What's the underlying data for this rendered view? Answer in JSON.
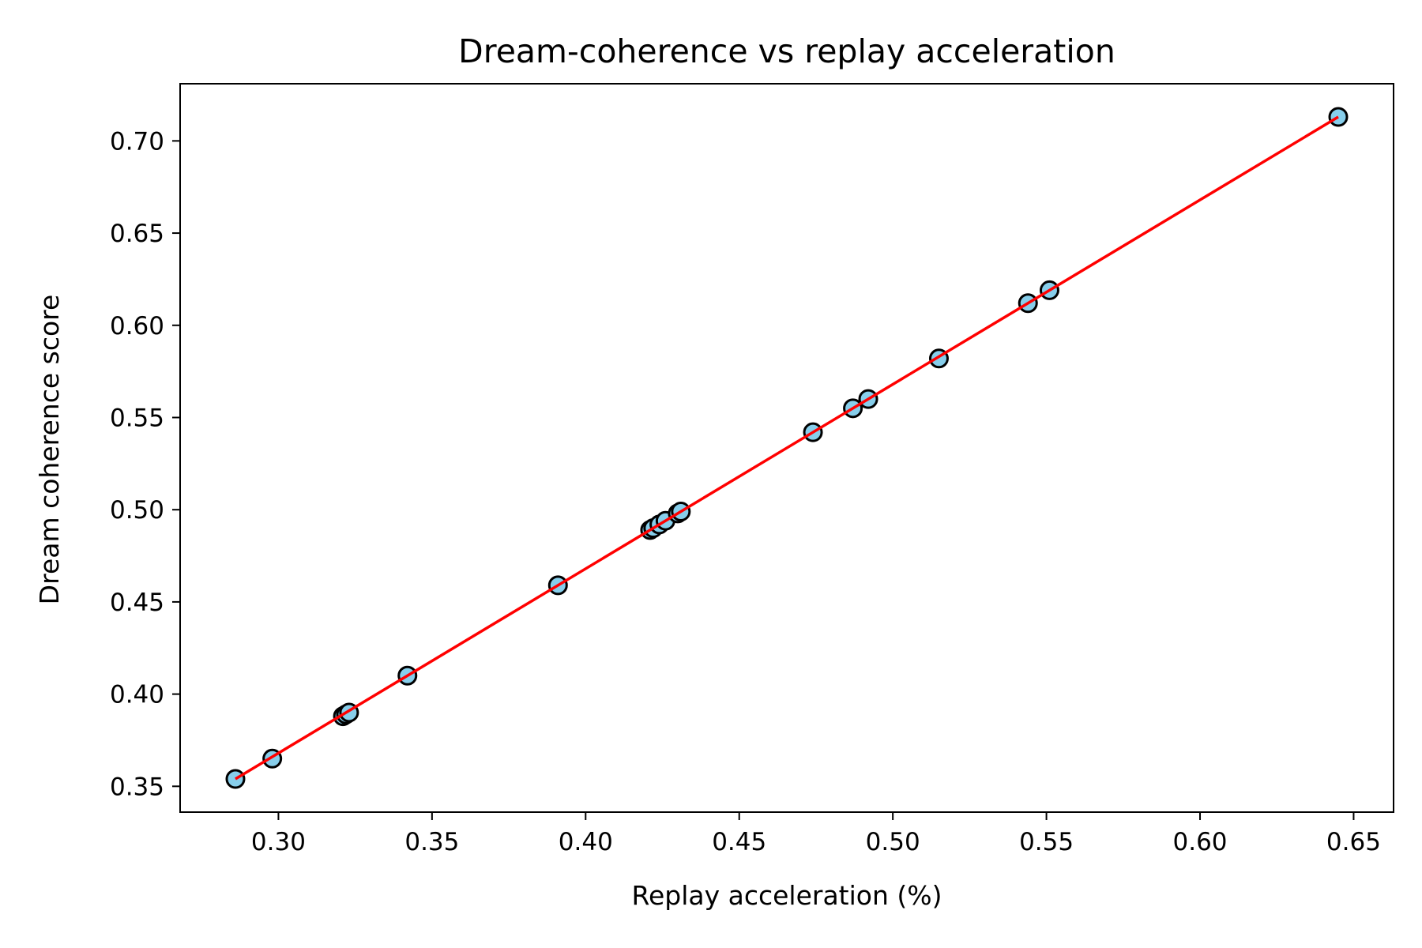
{
  "chart_data": {
    "type": "scatter",
    "title": "Dream-coherence vs replay acceleration",
    "xlabel": "Replay acceleration (%)",
    "ylabel": "Dream coherence score",
    "xlim": [
      0.268,
      0.663
    ],
    "ylim": [
      0.336,
      0.731
    ],
    "xticks": [
      0.3,
      0.35,
      0.4,
      0.45,
      0.5,
      0.55,
      0.6,
      0.65
    ],
    "yticks": [
      0.35,
      0.4,
      0.45,
      0.5,
      0.55,
      0.6,
      0.65,
      0.7
    ],
    "xtick_labels": [
      "0.30",
      "0.35",
      "0.40",
      "0.45",
      "0.50",
      "0.55",
      "0.60",
      "0.65"
    ],
    "ytick_labels": [
      "0.35",
      "0.40",
      "0.45",
      "0.50",
      "0.55",
      "0.60",
      "0.65",
      "0.70"
    ],
    "grid": false,
    "points": [
      {
        "x": 0.286,
        "y": 0.354
      },
      {
        "x": 0.298,
        "y": 0.365
      },
      {
        "x": 0.321,
        "y": 0.388
      },
      {
        "x": 0.322,
        "y": 0.389
      },
      {
        "x": 0.323,
        "y": 0.39
      },
      {
        "x": 0.342,
        "y": 0.41
      },
      {
        "x": 0.391,
        "y": 0.459
      },
      {
        "x": 0.421,
        "y": 0.489
      },
      {
        "x": 0.422,
        "y": 0.49
      },
      {
        "x": 0.424,
        "y": 0.492
      },
      {
        "x": 0.426,
        "y": 0.494
      },
      {
        "x": 0.43,
        "y": 0.498
      },
      {
        "x": 0.431,
        "y": 0.499
      },
      {
        "x": 0.474,
        "y": 0.542
      },
      {
        "x": 0.487,
        "y": 0.555
      },
      {
        "x": 0.492,
        "y": 0.56
      },
      {
        "x": 0.515,
        "y": 0.582
      },
      {
        "x": 0.544,
        "y": 0.612
      },
      {
        "x": 0.551,
        "y": 0.619
      },
      {
        "x": 0.645,
        "y": 0.713
      }
    ],
    "fit_line": {
      "x": [
        0.286,
        0.645
      ],
      "y": [
        0.354,
        0.713
      ]
    },
    "colors": {
      "marker_fill": "#87ceeb",
      "marker_edge": "#000000",
      "fit_line": "#ff0000",
      "axes": "#000000"
    }
  }
}
